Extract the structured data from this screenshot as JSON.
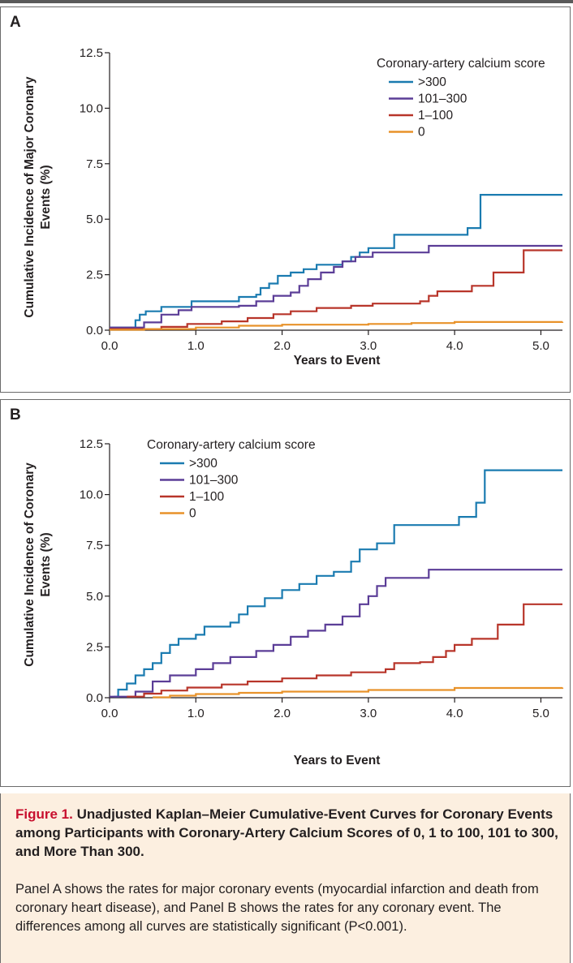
{
  "panels": [
    {
      "letter": "A",
      "ylabel_line1": "Cumulative Incidence of Major Coronary",
      "ylabel_line2": "Events (%)",
      "xlabel": "Years to Event"
    },
    {
      "letter": "B",
      "ylabel_line1": "Cumulative Incidence of Coronary",
      "ylabel_line2": "Events (%)",
      "xlabel": "Years to Event"
    }
  ],
  "chart_data": [
    {
      "type": "line",
      "step": true,
      "panel": "A",
      "xlabel": "Years to Event",
      "ylabel": "Cumulative Incidence of Major Coronary Events (%)",
      "xlim": [
        0,
        5.25
      ],
      "ylim": [
        0,
        12.5
      ],
      "xticks": [
        "0.0",
        "1.0",
        "2.0",
        "3.0",
        "4.0",
        "5.0"
      ],
      "yticks": [
        "0.0",
        "2.5",
        "5.0",
        "7.5",
        "10.0",
        "12.5"
      ],
      "grid": false,
      "legend_title": "Coronary-artery calcium score",
      "legend_position": "top-right",
      "series": [
        {
          "name": ">300",
          "color": "#1a7bb0",
          "points": [
            [
              0,
              0.12
            ],
            [
              0.25,
              0.12
            ],
            [
              0.3,
              0.45
            ],
            [
              0.35,
              0.7
            ],
            [
              0.42,
              0.85
            ],
            [
              0.6,
              1.05
            ],
            [
              0.95,
              1.3
            ],
            [
              1.5,
              1.5
            ],
            [
              1.7,
              1.6
            ],
            [
              1.75,
              1.9
            ],
            [
              1.85,
              2.1
            ],
            [
              1.95,
              2.45
            ],
            [
              2.1,
              2.6
            ],
            [
              2.25,
              2.75
            ],
            [
              2.4,
              2.95
            ],
            [
              2.7,
              3.1
            ],
            [
              2.8,
              3.3
            ],
            [
              2.9,
              3.5
            ],
            [
              3.0,
              3.7
            ],
            [
              3.3,
              4.3
            ],
            [
              3.7,
              4.3
            ],
            [
              4.15,
              4.6
            ],
            [
              4.3,
              6.1
            ],
            [
              5.25,
              6.1
            ]
          ]
        },
        {
          "name": "101–300",
          "color": "#5b3d97",
          "points": [
            [
              0,
              0.12
            ],
            [
              0.3,
              0.12
            ],
            [
              0.4,
              0.35
            ],
            [
              0.6,
              0.7
            ],
            [
              0.8,
              0.9
            ],
            [
              0.95,
              1.05
            ],
            [
              1.5,
              1.1
            ],
            [
              1.7,
              1.3
            ],
            [
              1.9,
              1.55
            ],
            [
              2.1,
              1.7
            ],
            [
              2.2,
              2.0
            ],
            [
              2.3,
              2.3
            ],
            [
              2.45,
              2.6
            ],
            [
              2.6,
              2.85
            ],
            [
              2.7,
              3.1
            ],
            [
              2.85,
              3.3
            ],
            [
              3.05,
              3.5
            ],
            [
              3.7,
              3.8
            ],
            [
              5.25,
              3.8
            ]
          ]
        },
        {
          "name": "1–100",
          "color": "#b8352a",
          "points": [
            [
              0,
              0.05
            ],
            [
              0.5,
              0.05
            ],
            [
              0.6,
              0.15
            ],
            [
              0.9,
              0.28
            ],
            [
              1.3,
              0.4
            ],
            [
              1.6,
              0.55
            ],
            [
              1.9,
              0.72
            ],
            [
              2.1,
              0.85
            ],
            [
              2.4,
              1.0
            ],
            [
              2.8,
              1.1
            ],
            [
              3.05,
              1.2
            ],
            [
              3.6,
              1.3
            ],
            [
              3.7,
              1.55
            ],
            [
              3.8,
              1.75
            ],
            [
              4.2,
              2.0
            ],
            [
              4.45,
              2.6
            ],
            [
              4.8,
              3.6
            ],
            [
              5.25,
              3.6
            ]
          ]
        },
        {
          "name": "0",
          "color": "#e8922a",
          "points": [
            [
              0,
              0.02
            ],
            [
              0.4,
              0.05
            ],
            [
              1.0,
              0.12
            ],
            [
              1.5,
              0.2
            ],
            [
              2.0,
              0.25
            ],
            [
              3.0,
              0.28
            ],
            [
              3.5,
              0.32
            ],
            [
              4.0,
              0.37
            ],
            [
              5.25,
              0.38
            ]
          ]
        }
      ]
    },
    {
      "type": "line",
      "step": true,
      "panel": "B",
      "xlabel": "Years to Event",
      "ylabel": "Cumulative Incidence of Coronary Events (%)",
      "xlim": [
        0,
        5.25
      ],
      "ylim": [
        0,
        12.5
      ],
      "xticks": [
        "0.0",
        "1.0",
        "2.0",
        "3.0",
        "4.0",
        "5.0"
      ],
      "yticks": [
        "0.0",
        "2.5",
        "5.0",
        "7.5",
        "10.0",
        "12.5"
      ],
      "grid": false,
      "legend_title": "Coronary-artery calcium score",
      "legend_position": "top-left",
      "series": [
        {
          "name": ">300",
          "color": "#1a7bb0",
          "points": [
            [
              0.05,
              0.05
            ],
            [
              0.1,
              0.4
            ],
            [
              0.2,
              0.7
            ],
            [
              0.3,
              1.1
            ],
            [
              0.4,
              1.4
            ],
            [
              0.5,
              1.7
            ],
            [
              0.6,
              2.2
            ],
            [
              0.7,
              2.6
            ],
            [
              0.8,
              2.9
            ],
            [
              1.0,
              3.1
            ],
            [
              1.1,
              3.5
            ],
            [
              1.4,
              3.7
            ],
            [
              1.5,
              4.1
            ],
            [
              1.6,
              4.5
            ],
            [
              1.8,
              4.9
            ],
            [
              2.0,
              5.3
            ],
            [
              2.2,
              5.6
            ],
            [
              2.4,
              6.0
            ],
            [
              2.6,
              6.2
            ],
            [
              2.8,
              6.7
            ],
            [
              2.9,
              7.3
            ],
            [
              3.1,
              7.6
            ],
            [
              3.3,
              8.5
            ],
            [
              3.9,
              8.5
            ],
            [
              4.05,
              8.9
            ],
            [
              4.25,
              9.6
            ],
            [
              4.35,
              11.2
            ],
            [
              5.25,
              11.2
            ]
          ]
        },
        {
          "name": "101–300",
          "color": "#5b3d97",
          "points": [
            [
              0,
              0.05
            ],
            [
              0.3,
              0.3
            ],
            [
              0.5,
              0.8
            ],
            [
              0.7,
              1.1
            ],
            [
              1.0,
              1.4
            ],
            [
              1.2,
              1.7
            ],
            [
              1.4,
              2.0
            ],
            [
              1.7,
              2.3
            ],
            [
              1.9,
              2.6
            ],
            [
              2.1,
              3.0
            ],
            [
              2.3,
              3.3
            ],
            [
              2.5,
              3.6
            ],
            [
              2.7,
              4.0
            ],
            [
              2.9,
              4.6
            ],
            [
              3.0,
              5.0
            ],
            [
              3.1,
              5.5
            ],
            [
              3.2,
              5.9
            ],
            [
              3.7,
              6.3
            ],
            [
              5.25,
              6.3
            ]
          ]
        },
        {
          "name": "1–100",
          "color": "#b8352a",
          "points": [
            [
              0.2,
              0.05
            ],
            [
              0.4,
              0.2
            ],
            [
              0.6,
              0.35
            ],
            [
              0.9,
              0.5
            ],
            [
              1.3,
              0.65
            ],
            [
              1.6,
              0.8
            ],
            [
              2.0,
              0.95
            ],
            [
              2.4,
              1.1
            ],
            [
              2.8,
              1.25
            ],
            [
              3.2,
              1.4
            ],
            [
              3.3,
              1.7
            ],
            [
              3.6,
              1.75
            ],
            [
              3.75,
              2.0
            ],
            [
              3.9,
              2.3
            ],
            [
              4.0,
              2.6
            ],
            [
              4.2,
              2.9
            ],
            [
              4.5,
              3.6
            ],
            [
              4.8,
              4.6
            ],
            [
              5.25,
              4.6
            ]
          ]
        },
        {
          "name": "0",
          "color": "#e8922a",
          "points": [
            [
              0.5,
              0.02
            ],
            [
              0.7,
              0.1
            ],
            [
              1.0,
              0.18
            ],
            [
              1.5,
              0.24
            ],
            [
              2.0,
              0.3
            ],
            [
              3.0,
              0.38
            ],
            [
              4.0,
              0.48
            ],
            [
              5.25,
              0.5
            ]
          ]
        }
      ]
    }
  ],
  "caption": {
    "figure_label": "Figure 1.",
    "title": " Unadjusted Kaplan–Meier Cumulative-Event Curves for Coronary Events among Participants with Coronary-Artery Calcium Scores of 0, 1 to 100, 101 to 300, and More Than 300.",
    "body": "Panel A shows the rates for major coronary events (myocardial infarction and death from coronary heart disease), and Panel B shows the rates for any coronary event. The differences among all curves are statistically significant (P<0.001)."
  }
}
